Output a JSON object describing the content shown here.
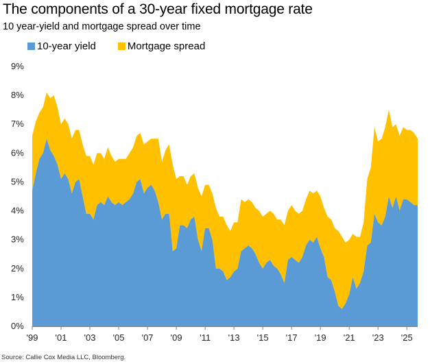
{
  "title": "The components of a 30-year fixed mortgage rate",
  "subtitle": "10 year-yield and mortgage spread over time",
  "source": "Source: Callie Cox Media LLC, Bloomberg.",
  "colors": {
    "yield": "#5b9bd5",
    "spread": "#ffc000",
    "axis": "#808080"
  },
  "chart_data": {
    "type": "area",
    "stacked": true,
    "title": "The components of a 30-year fixed mortgage rate",
    "subtitle": "10 year-yield and mortgage spread over time",
    "xlabel": "",
    "ylabel": "",
    "xlim": [
      1999,
      2025.75
    ],
    "ylim": [
      0,
      9
    ],
    "y_ticks": [
      0,
      1,
      2,
      3,
      4,
      5,
      6,
      7,
      8,
      9
    ],
    "y_tick_labels": [
      "0%",
      "1%",
      "2%",
      "3%",
      "4%",
      "5%",
      "6%",
      "7%",
      "8%",
      "9%"
    ],
    "x_ticks": [
      1999,
      2001,
      2003,
      2005,
      2007,
      2009,
      2011,
      2013,
      2015,
      2017,
      2019,
      2021,
      2023,
      2025
    ],
    "x_tick_labels": [
      "'99",
      "'01",
      "'03",
      "'05",
      "'07",
      "'09",
      "'11",
      "'13",
      "'15",
      "'17",
      "'19",
      "'21",
      "'23",
      "'25"
    ],
    "legend": [
      "10-year yield",
      "Mortgage spread"
    ],
    "legend_position": "top-left",
    "x": [
      1999.0,
      1999.25,
      1999.5,
      1999.75,
      2000.0,
      2000.25,
      2000.5,
      2000.75,
      2001.0,
      2001.25,
      2001.5,
      2001.75,
      2002.0,
      2002.25,
      2002.5,
      2002.75,
      2003.0,
      2003.25,
      2003.5,
      2003.75,
      2004.0,
      2004.25,
      2004.5,
      2004.75,
      2005.0,
      2005.25,
      2005.5,
      2005.75,
      2006.0,
      2006.25,
      2006.5,
      2006.75,
      2007.0,
      2007.25,
      2007.5,
      2007.75,
      2008.0,
      2008.25,
      2008.5,
      2008.75,
      2009.0,
      2009.25,
      2009.5,
      2009.75,
      2010.0,
      2010.25,
      2010.5,
      2010.75,
      2011.0,
      2011.25,
      2011.5,
      2011.75,
      2012.0,
      2012.25,
      2012.5,
      2012.75,
      2013.0,
      2013.25,
      2013.5,
      2013.75,
      2014.0,
      2014.25,
      2014.5,
      2014.75,
      2015.0,
      2015.25,
      2015.5,
      2015.75,
      2016.0,
      2016.25,
      2016.5,
      2016.75,
      2017.0,
      2017.25,
      2017.5,
      2017.75,
      2018.0,
      2018.25,
      2018.5,
      2018.75,
      2019.0,
      2019.25,
      2019.5,
      2019.75,
      2020.0,
      2020.25,
      2020.5,
      2020.75,
      2021.0,
      2021.25,
      2021.5,
      2021.75,
      2022.0,
      2022.25,
      2022.5,
      2022.75,
      2023.0,
      2023.25,
      2023.5,
      2023.75,
      2024.0,
      2024.25,
      2024.5,
      2024.75,
      2025.0,
      2025.25,
      2025.5,
      2025.75
    ],
    "series": [
      {
        "name": "10-year yield",
        "values": [
          4.7,
          5.3,
          5.8,
          6.0,
          6.5,
          6.1,
          5.9,
          5.6,
          5.1,
          5.3,
          5.1,
          4.6,
          5.0,
          5.1,
          4.5,
          3.9,
          3.9,
          3.7,
          4.2,
          4.3,
          4.2,
          4.5,
          4.3,
          4.2,
          4.3,
          4.2,
          4.3,
          4.4,
          4.6,
          5.0,
          5.1,
          4.6,
          4.8,
          4.9,
          4.7,
          4.3,
          3.7,
          3.9,
          3.9,
          2.6,
          2.7,
          3.5,
          3.5,
          3.4,
          3.7,
          3.8,
          3.0,
          2.6,
          3.4,
          3.4,
          3.0,
          2.0,
          2.0,
          1.9,
          1.6,
          1.7,
          1.9,
          2.0,
          2.6,
          2.7,
          2.8,
          2.7,
          2.5,
          2.2,
          2.0,
          2.2,
          2.3,
          2.1,
          2.0,
          1.8,
          1.5,
          2.3,
          2.4,
          2.3,
          2.2,
          2.4,
          2.8,
          3.0,
          2.9,
          3.1,
          2.7,
          2.4,
          1.7,
          1.6,
          1.2,
          0.7,
          0.6,
          0.8,
          1.1,
          1.7,
          1.3,
          1.5,
          1.9,
          2.8,
          2.9,
          3.9,
          3.6,
          3.5,
          3.8,
          4.5,
          4.1,
          4.5,
          4.0,
          4.4,
          4.4,
          4.3,
          4.2,
          4.2
        ]
      },
      {
        "name": "Mortgage spread",
        "values": [
          1.9,
          1.8,
          1.6,
          1.6,
          1.6,
          1.8,
          2.1,
          2.0,
          1.9,
          1.9,
          1.9,
          1.9,
          1.8,
          1.7,
          1.8,
          2.0,
          2.0,
          1.9,
          1.8,
          1.7,
          1.6,
          1.7,
          1.6,
          1.5,
          1.5,
          1.6,
          1.5,
          1.6,
          1.6,
          1.6,
          1.6,
          1.7,
          1.6,
          1.6,
          1.8,
          2.2,
          2.0,
          2.2,
          2.4,
          3.0,
          2.4,
          1.7,
          1.7,
          1.5,
          1.5,
          1.5,
          1.8,
          1.9,
          1.5,
          1.5,
          1.6,
          2.1,
          1.8,
          1.9,
          1.9,
          1.6,
          1.7,
          1.6,
          1.8,
          1.6,
          1.6,
          1.6,
          1.6,
          1.8,
          1.8,
          1.7,
          1.7,
          1.8,
          1.7,
          1.9,
          2.0,
          1.7,
          1.8,
          1.7,
          1.7,
          1.6,
          1.6,
          1.7,
          1.7,
          1.6,
          1.8,
          1.7,
          2.1,
          2.1,
          2.2,
          2.6,
          2.5,
          2.1,
          1.9,
          1.5,
          1.8,
          1.6,
          1.7,
          2.3,
          2.6,
          3.0,
          2.8,
          3.0,
          3.1,
          3.0,
          2.8,
          2.5,
          2.6,
          2.5,
          2.4,
          2.5,
          2.5,
          2.3
        ]
      }
    ]
  }
}
